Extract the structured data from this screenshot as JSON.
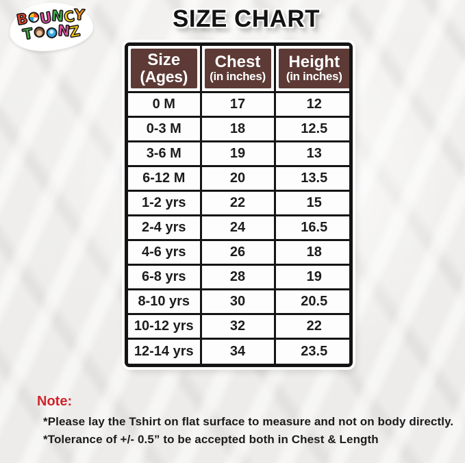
{
  "title": "SIZE CHART",
  "logo": {
    "brand": "BOUNCY TOONZ",
    "line1": [
      {
        "ch": "B",
        "color": "#e8432e"
      },
      {
        "ch": "O",
        "shape": "beach-ball"
      },
      {
        "ch": "U",
        "color": "#e0519e"
      },
      {
        "ch": "N",
        "color": "#3fa948"
      },
      {
        "ch": "C",
        "color": "#f6c913"
      },
      {
        "ch": "Y",
        "color": "#f6921e"
      }
    ],
    "line2": [
      {
        "ch": "T",
        "color": "#3fa948"
      },
      {
        "ch": "O",
        "shape": "monkey-face"
      },
      {
        "ch": "O",
        "shape": "blue-face"
      },
      {
        "ch": "N",
        "color": "#e0519e"
      },
      {
        "ch": "Z",
        "color": "#f6c913"
      }
    ]
  },
  "table": {
    "headers": [
      {
        "top": "Size",
        "bottom": "(Ages)"
      },
      {
        "top": "Chest",
        "bottom": "(in inches)"
      },
      {
        "top": "Height",
        "bottom": "(in inches)"
      }
    ],
    "rows": [
      [
        "0 M",
        "17",
        "12"
      ],
      [
        "0-3 M",
        "18",
        "12.5"
      ],
      [
        "3-6 M",
        "19",
        "13"
      ],
      [
        "6-12 M",
        "20",
        "13.5"
      ],
      [
        "1-2 yrs",
        "22",
        "15"
      ],
      [
        "2-4 yrs",
        "24",
        "16.5"
      ],
      [
        "4-6 yrs",
        "26",
        "18"
      ],
      [
        "6-8 yrs",
        "28",
        "19"
      ],
      [
        "8-10 yrs",
        "30",
        "20.5"
      ],
      [
        "10-12 yrs",
        "32",
        "22"
      ],
      [
        "12-14 yrs",
        "34",
        "23.5"
      ]
    ]
  },
  "note": {
    "label": "Note:",
    "items": [
      "*Please lay the Tshirt on flat surface to measure and not on body directly.",
      "*Tolerance of +/- 0.5” to be accepted both in Chest & Length"
    ]
  },
  "colors": {
    "header_bg": "#5d3a35",
    "note_red": "#d2232a",
    "table_border": "#141414",
    "background": "#efeeec"
  },
  "chart_data": {
    "type": "table",
    "title": "SIZE CHART",
    "columns": [
      "Size (Ages)",
      "Chest (in inches)",
      "Height (in inches)"
    ],
    "rows": [
      [
        "0 M",
        17,
        12
      ],
      [
        "0-3 M",
        18,
        12.5
      ],
      [
        "3-6 M",
        19,
        13
      ],
      [
        "6-12 M",
        20,
        13.5
      ],
      [
        "1-2 yrs",
        22,
        15
      ],
      [
        "2-4 yrs",
        24,
        16.5
      ],
      [
        "4-6 yrs",
        26,
        18
      ],
      [
        "6-8 yrs",
        28,
        19
      ],
      [
        "8-10 yrs",
        30,
        20.5
      ],
      [
        "10-12 yrs",
        32,
        22
      ],
      [
        "12-14 yrs",
        34,
        23.5
      ]
    ]
  }
}
